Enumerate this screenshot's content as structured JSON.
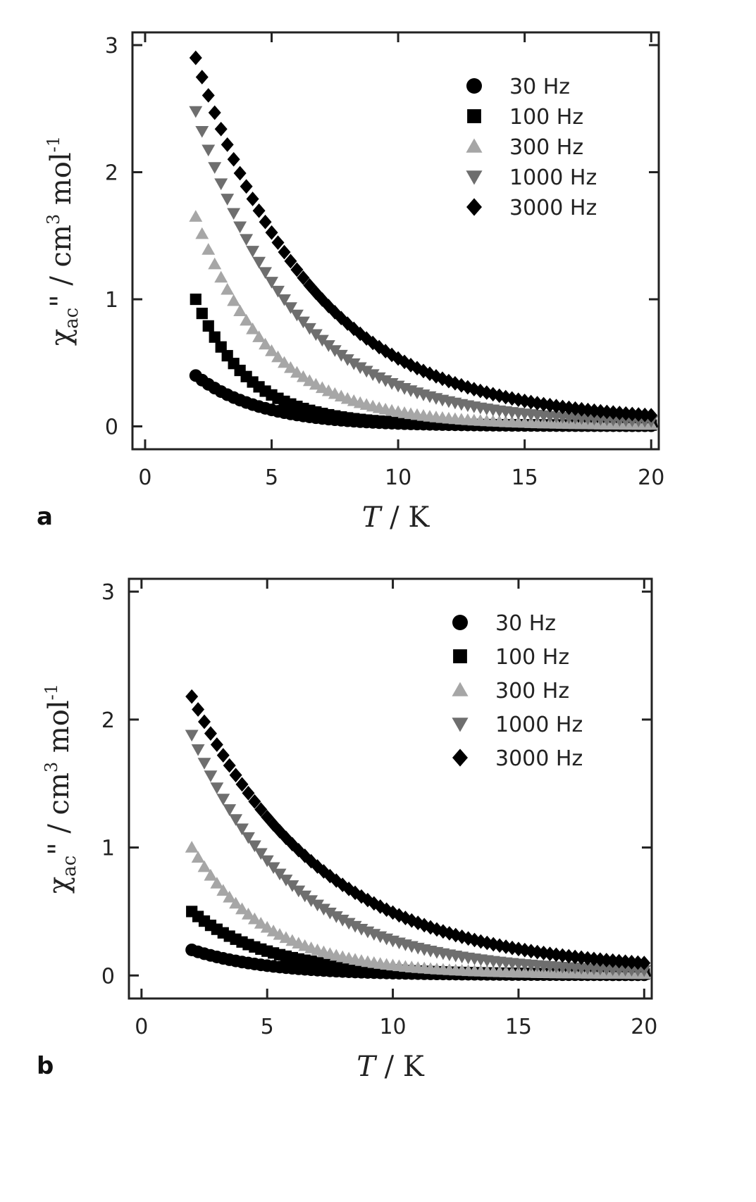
{
  "chart_data": [
    {
      "type": "scatter",
      "panel_label": "a",
      "xlabel_symbol": "T",
      "xlabel_unit": " / K",
      "ylabel_symbol": "χ",
      "ylabel_sub": "ac",
      "ylabel_rest": "\"  / cm",
      "ylabel_sup1": "3",
      "ylabel_mol": " mol",
      "ylabel_sup2": "-1",
      "xlim": [
        -0.5,
        20.3
      ],
      "ylim": [
        -0.18,
        3.1
      ],
      "x_ticks": [
        0,
        5,
        10,
        15,
        20
      ],
      "y_ticks": [
        0,
        1,
        2,
        3
      ],
      "legend_position": "top-right",
      "series": [
        {
          "name": "30 Hz",
          "marker": "circle",
          "color": "#000000",
          "y0": 0.4,
          "y20": 0.005,
          "tau": 2.6
        },
        {
          "name": "100 Hz",
          "marker": "square",
          "color": "#000000",
          "y0": 1.0,
          "y20": 0.01,
          "tau": 2.1
        },
        {
          "name": "300 Hz",
          "marker": "triangle-up",
          "color": "#a6a6a6",
          "y0": 1.65,
          "y20": 0.01,
          "tau": 2.9
        },
        {
          "name": "1000 Hz",
          "marker": "triangle-down",
          "color": "#6e6e6e",
          "y0": 2.48,
          "y20": 0.02,
          "tau": 3.8
        },
        {
          "name": "3000 Hz",
          "marker": "diamond",
          "color": "#000000",
          "y0": 2.9,
          "y20": 0.03,
          "tau": 4.6
        }
      ]
    },
    {
      "type": "scatter",
      "panel_label": "b",
      "xlabel_symbol": "T",
      "xlabel_unit": " / K",
      "ylabel_symbol": "χ",
      "ylabel_sub": "ac",
      "ylabel_rest": "\"  / cm",
      "ylabel_sup1": "3",
      "ylabel_mol": " mol",
      "ylabel_sup2": "-1",
      "xlim": [
        -0.5,
        20.3
      ],
      "ylim": [
        -0.18,
        3.1
      ],
      "x_ticks": [
        0,
        5,
        10,
        15,
        20
      ],
      "y_ticks": [
        0,
        1,
        2,
        3
      ],
      "legend_position": "top-right",
      "series": [
        {
          "name": "30 Hz",
          "marker": "circle",
          "color": "#000000",
          "y0": 0.2,
          "y20": 0.005,
          "tau": 3.0
        },
        {
          "name": "100  Hz",
          "marker": "square",
          "color": "#000000",
          "y0": 0.5,
          "y20": 0.01,
          "tau": 3.0
        },
        {
          "name": "300 Hz",
          "marker": "triangle-up",
          "color": "#a6a6a6",
          "y0": 1.0,
          "y20": 0.01,
          "tau": 3.0
        },
        {
          "name": "1000 Hz",
          "marker": "triangle-down",
          "color": "#6e6e6e",
          "y0": 1.88,
          "y20": 0.02,
          "tau": 4.0
        },
        {
          "name": "3000 Hz",
          "marker": "diamond",
          "color": "#000000",
          "y0": 2.18,
          "y20": 0.03,
          "tau": 5.2
        }
      ]
    }
  ]
}
